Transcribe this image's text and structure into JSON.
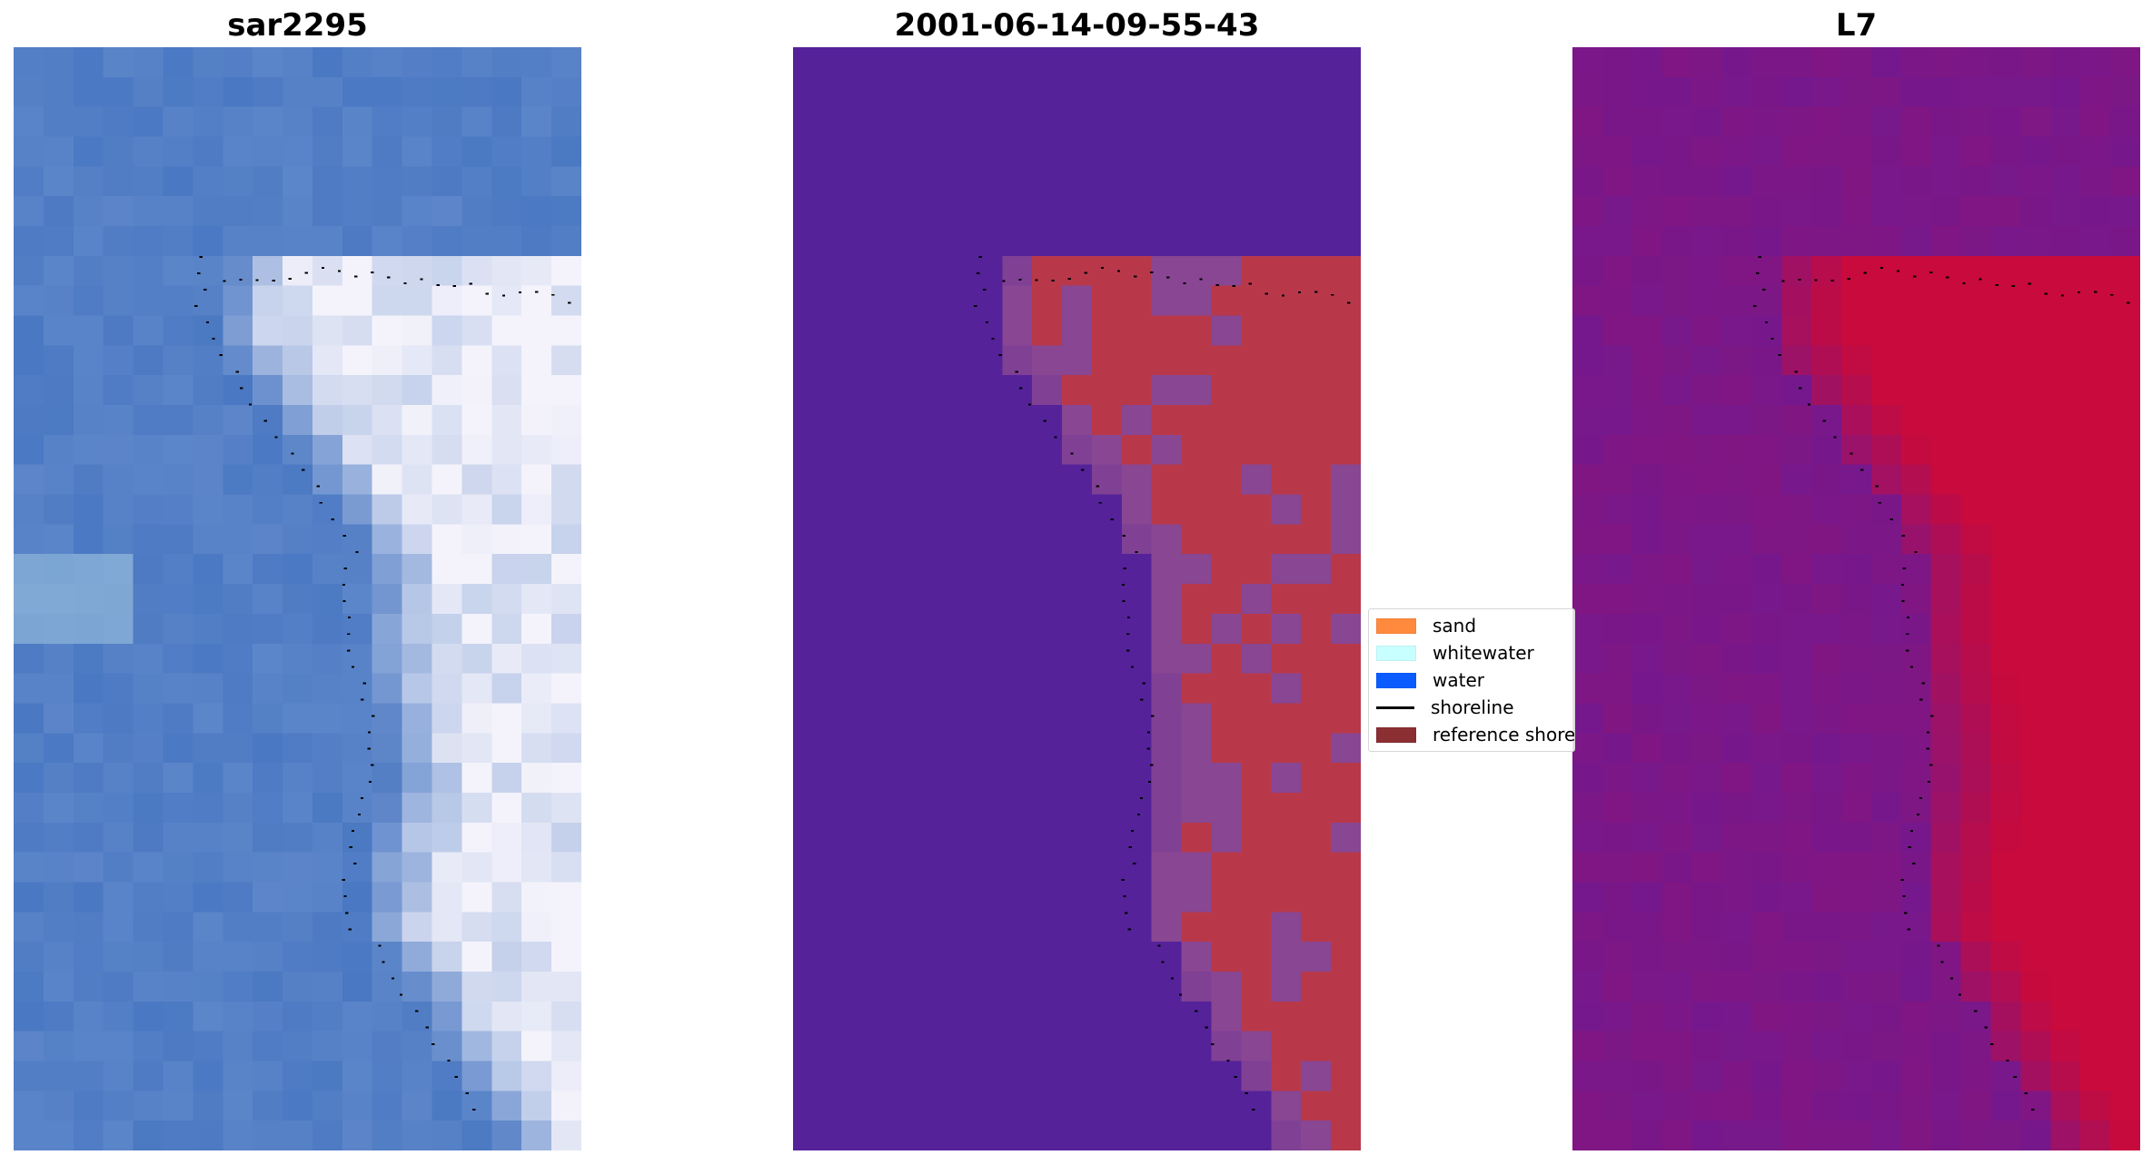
{
  "panels": [
    {
      "title": "sar2295",
      "image": "satellite-rgb"
    },
    {
      "title": "2001-06-14-09-55-43",
      "image": "classified"
    },
    {
      "title": "L7",
      "image": "mndwi"
    }
  ],
  "legend": {
    "items": [
      {
        "label": "sand",
        "color": "#ff8a3d",
        "kind": "patch"
      },
      {
        "label": "whitewater",
        "color": "#c8ffff",
        "kind": "patch"
      },
      {
        "label": "water",
        "color": "#0a5cff",
        "kind": "patch"
      },
      {
        "label": "shoreline",
        "color": "#000000",
        "kind": "line"
      },
      {
        "label": "reference shoreline",
        "color": "#8b2f33",
        "kind": "patch"
      }
    ]
  },
  "colors": {
    "water_blue": "#4a78c2",
    "class_water": "#55229a",
    "class_sand": "#b8384a",
    "class_mix": "#8e4a92",
    "mndwi_low": "#6a1a98",
    "mndwi_high": "#c80a3c"
  }
}
